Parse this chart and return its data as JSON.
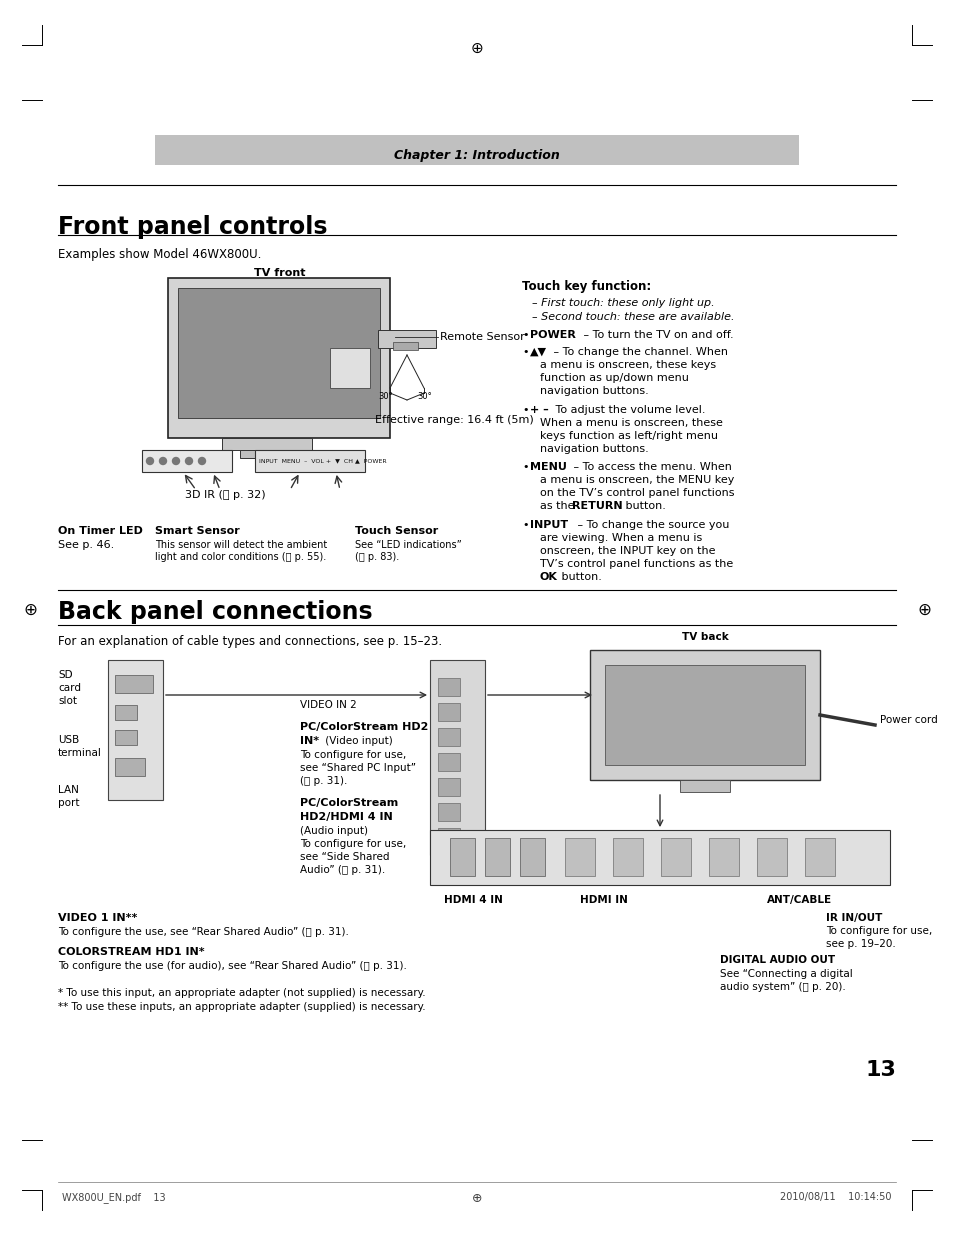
{
  "bg_color": "#ffffff",
  "page_width": 9.54,
  "page_height": 12.35,
  "dpi": 100,
  "chapter_header_text": "Chapter 1: Introduction",
  "chapter_header_bg": "#b8b8b8",
  "section1_title": "Front panel controls",
  "section1_subtitle": "Examples show Model 46WX800U.",
  "section2_title": "Back panel connections",
  "section2_subtitle": "For an explanation of cable types and connections, see p. 15–23.",
  "footer_left": "WX800U_EN.pdf    13",
  "footer_right": "2010/08/11    10:14:50",
  "page_number": "13"
}
